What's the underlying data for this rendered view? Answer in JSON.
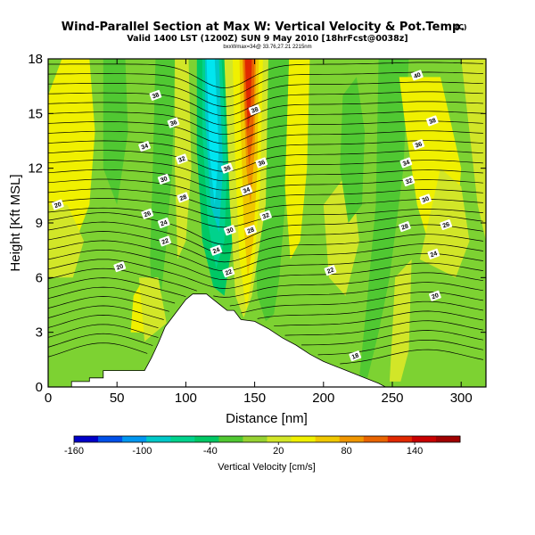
{
  "title": "Wind-Parallel Section at Max W: Vertical Velocity & Pot.Temp.",
  "copyright": "(C)",
  "subtitle": "Valid 1400 LST (1200Z) SUN 9 May 2010 [18hrFcst@0038z]",
  "subtitle2": "bxxWmax=34@ 33.76,27.21 2215nm",
  "chart_data": {
    "type": "heatmap",
    "title": "Wind-Parallel Section at Max W: Vertical Velocity & Pot.Temp.",
    "xlabel": "Distance [nm]",
    "ylabel": "Height [Kft MSL]",
    "xlim": [
      0,
      318
    ],
    "ylim": [
      0,
      18
    ],
    "xticks": [
      0,
      50,
      100,
      150,
      200,
      250,
      300
    ],
    "yticks": [
      0,
      3,
      6,
      9,
      12,
      15,
      18
    ],
    "colorbar": {
      "label": "Vertical Velocity [cm/s]",
      "range": [
        -160,
        180
      ],
      "ticks": [
        -160,
        -100,
        -40,
        20,
        80,
        140
      ],
      "colors": [
        "#0000c8",
        "#0050e8",
        "#0096f0",
        "#00c8c8",
        "#00d28c",
        "#00c864",
        "#50c832",
        "#96d232",
        "#d2e628",
        "#f0f000",
        "#f0c800",
        "#f09600",
        "#e86400",
        "#e02800",
        "#c80000",
        "#a00000"
      ]
    },
    "field_colors": {
      "background": "#7dd232",
      "moderate_updraft": "#d2e628",
      "updraft": "#f0f000",
      "weak_down": "#50c832",
      "downdraft": "#00c864",
      "strong_down": "#00d28c",
      "core_down": "#00c8c8",
      "core_down2": "#00e6f0",
      "core_up1": "#f0c800",
      "core_up2": "#f09600",
      "core_up3": "#e86400",
      "core_up4": "#e02800"
    },
    "terrain": [
      [
        0,
        0
      ],
      [
        17,
        0
      ],
      [
        17,
        0.3
      ],
      [
        30,
        0.3
      ],
      [
        30,
        0.5
      ],
      [
        40,
        0.5
      ],
      [
        40,
        0.9
      ],
      [
        60,
        0.9
      ],
      [
        70,
        0.9
      ],
      [
        75,
        1.6
      ],
      [
        80,
        2.4
      ],
      [
        85,
        3.3
      ],
      [
        90,
        3.8
      ],
      [
        95,
        4.3
      ],
      [
        100,
        4.8
      ],
      [
        105,
        5.1
      ],
      [
        115,
        5.1
      ],
      [
        120,
        4.8
      ],
      [
        125,
        4.5
      ],
      [
        130,
        4.2
      ],
      [
        135,
        4.2
      ],
      [
        140,
        3.7
      ],
      [
        150,
        3.6
      ],
      [
        160,
        3.2
      ],
      [
        170,
        2.7
      ],
      [
        180,
        2.3
      ],
      [
        190,
        1.8
      ],
      [
        200,
        1.4
      ],
      [
        210,
        1.1
      ],
      [
        220,
        0.8
      ],
      [
        230,
        0.5
      ],
      [
        240,
        0.2
      ],
      [
        245,
        0
      ],
      [
        318,
        0
      ]
    ],
    "contour_labels": [
      {
        "text": "38",
        "x": 78,
        "y": 16.0
      },
      {
        "text": "36",
        "x": 91,
        "y": 14.5
      },
      {
        "text": "34",
        "x": 70,
        "y": 13.2
      },
      {
        "text": "32",
        "x": 97,
        "y": 12.5
      },
      {
        "text": "30",
        "x": 84,
        "y": 11.4
      },
      {
        "text": "28",
        "x": 98,
        "y": 10.4
      },
      {
        "text": "26",
        "x": 72,
        "y": 9.5
      },
      {
        "text": "24",
        "x": 84,
        "y": 9.0
      },
      {
        "text": "22",
        "x": 85,
        "y": 8.0
      },
      {
        "text": "20",
        "x": 52,
        "y": 6.6
      },
      {
        "text": "20",
        "x": 7,
        "y": 10.0
      },
      {
        "text": "38",
        "x": 150,
        "y": 15.2
      },
      {
        "text": "36",
        "x": 130,
        "y": 12.0
      },
      {
        "text": "36",
        "x": 155,
        "y": 12.3
      },
      {
        "text": "34",
        "x": 144,
        "y": 10.8
      },
      {
        "text": "32",
        "x": 158,
        "y": 9.4
      },
      {
        "text": "30",
        "x": 132,
        "y": 8.6
      },
      {
        "text": "28",
        "x": 147,
        "y": 8.6
      },
      {
        "text": "24",
        "x": 122,
        "y": 7.5
      },
      {
        "text": "22",
        "x": 131,
        "y": 6.3
      },
      {
        "text": "40",
        "x": 268,
        "y": 17.1
      },
      {
        "text": "38",
        "x": 279,
        "y": 14.6
      },
      {
        "text": "36",
        "x": 269,
        "y": 13.3
      },
      {
        "text": "34",
        "x": 260,
        "y": 12.3
      },
      {
        "text": "32",
        "x": 262,
        "y": 11.3
      },
      {
        "text": "30",
        "x": 274,
        "y": 10.3
      },
      {
        "text": "28",
        "x": 259,
        "y": 8.8
      },
      {
        "text": "26",
        "x": 289,
        "y": 8.9
      },
      {
        "text": "24",
        "x": 280,
        "y": 7.3
      },
      {
        "text": "22",
        "x": 205,
        "y": 6.4
      },
      {
        "text": "20",
        "x": 281,
        "y": 5.0
      },
      {
        "text": "18",
        "x": 223,
        "y": 1.7
      }
    ]
  }
}
